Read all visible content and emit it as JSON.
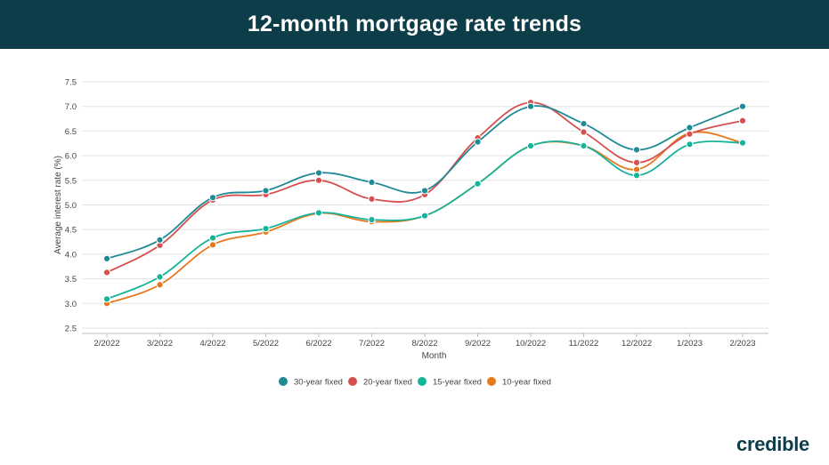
{
  "header": {
    "title": "12-month mortgage rate trends"
  },
  "brand": {
    "name": "credible",
    "color": "#0e3d4a"
  },
  "chart_data": {
    "type": "line",
    "title": "12-month mortgage rate trends",
    "xlabel": "Month",
    "ylabel": "Average interest rate (%)",
    "ylim": [
      2.5,
      7.5
    ],
    "yticks": [
      2.5,
      3.0,
      3.5,
      4.0,
      4.5,
      5.0,
      5.5,
      6.0,
      6.5,
      7.0,
      7.5
    ],
    "ytick_labels": [
      "2.5",
      "3.0",
      "3.5",
      "4.0",
      "4.5",
      "5.0",
      "5.5",
      "6.0",
      "6.5",
      "7.0",
      "7.5"
    ],
    "grid": true,
    "legend_position": "bottom",
    "categories": [
      "2/2022",
      "3/2022",
      "4/2022",
      "5/2022",
      "6/2022",
      "7/2022",
      "8/2022",
      "9/2022",
      "10/2022",
      "11/2022",
      "12/2022",
      "1/2023",
      "2/2023"
    ],
    "series": [
      {
        "name": "30-year fixed",
        "color": "#1e8a95",
        "values": [
          3.91,
          4.29,
          5.15,
          5.29,
          5.65,
          5.46,
          5.29,
          6.28,
          7.0,
          6.65,
          6.12,
          6.57,
          7.0
        ]
      },
      {
        "name": "20-year fixed",
        "color": "#d64f4f",
        "values": [
          3.63,
          4.18,
          5.1,
          5.21,
          5.5,
          5.12,
          5.21,
          6.36,
          7.08,
          6.48,
          5.86,
          6.44,
          6.71
        ]
      },
      {
        "name": "15-year fixed",
        "color": "#15b49a",
        "values": [
          3.09,
          3.54,
          4.33,
          4.52,
          4.84,
          4.7,
          4.78,
          5.43,
          6.2,
          6.2,
          5.6,
          6.23,
          6.26
        ]
      },
      {
        "name": "10-year fixed",
        "color": "#e8781c",
        "values": [
          3.0,
          3.38,
          4.19,
          4.45,
          4.83,
          4.66,
          4.78,
          5.43,
          6.2,
          6.2,
          5.72,
          6.46,
          6.26
        ]
      }
    ]
  }
}
